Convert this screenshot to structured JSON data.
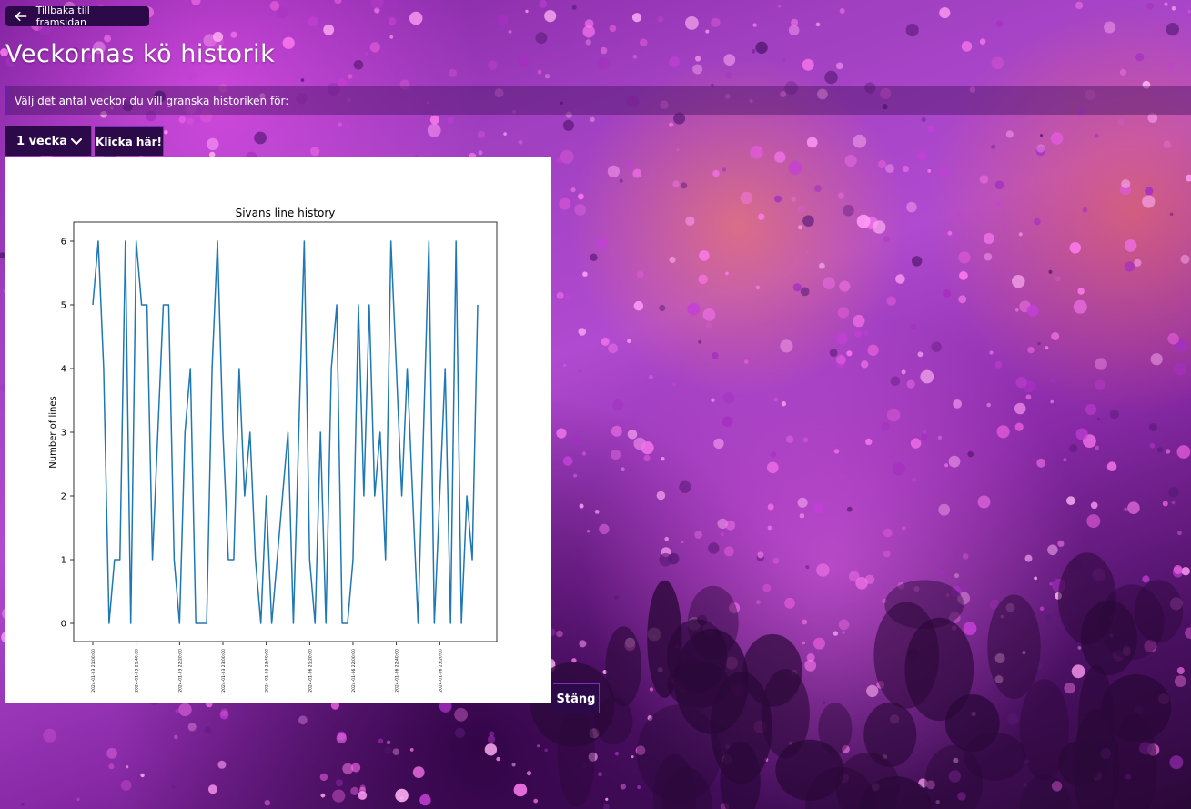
{
  "nav": {
    "back_label": "Tillbaka till framsidan"
  },
  "header": {
    "title": "Veckornas kö historik"
  },
  "prompt": {
    "text": "Välj det antal veckor du vill granska historiken för:"
  },
  "controls": {
    "weeks_selected": "1 vecka",
    "submit_label": "Klicka här!"
  },
  "modal": {
    "close_label": "Stäng"
  },
  "chart_data": {
    "type": "line",
    "title": "Sivans line history",
    "xlabel": "",
    "ylabel": "Number of lines",
    "ylim": [
      0,
      6
    ],
    "yticks": [
      0,
      1,
      2,
      3,
      4,
      5,
      6
    ],
    "xtick_labels": [
      "2024-01-03 21:00:00",
      "2024-01-03 21:40:00",
      "2024-01-03 22:20:00",
      "2024-01-03 23:00:00",
      "2024-01-03 23:40:00",
      "2024-01-06 21:20:00",
      "2024-01-06 22:00:00",
      "2024-01-06 22:40:00",
      "2024-01-06 23:20:00"
    ],
    "series": [
      {
        "values": [
          5,
          6,
          4,
          0,
          1,
          1,
          6,
          0,
          6,
          5,
          5,
          1,
          3,
          5,
          5,
          1,
          0,
          3,
          4,
          0,
          0,
          0,
          4,
          6,
          3,
          1,
          1,
          4,
          2,
          3,
          1,
          0,
          2,
          0,
          1,
          2,
          3,
          0,
          3,
          6,
          1,
          0,
          3,
          0,
          4,
          5,
          0,
          0,
          1,
          5,
          2,
          5,
          2,
          3,
          1,
          6,
          4,
          2,
          4,
          2,
          0,
          3,
          6,
          0,
          2,
          4,
          0,
          6,
          0,
          2,
          1,
          5
        ],
        "color": "#1f77b4"
      }
    ],
    "grid": false
  }
}
